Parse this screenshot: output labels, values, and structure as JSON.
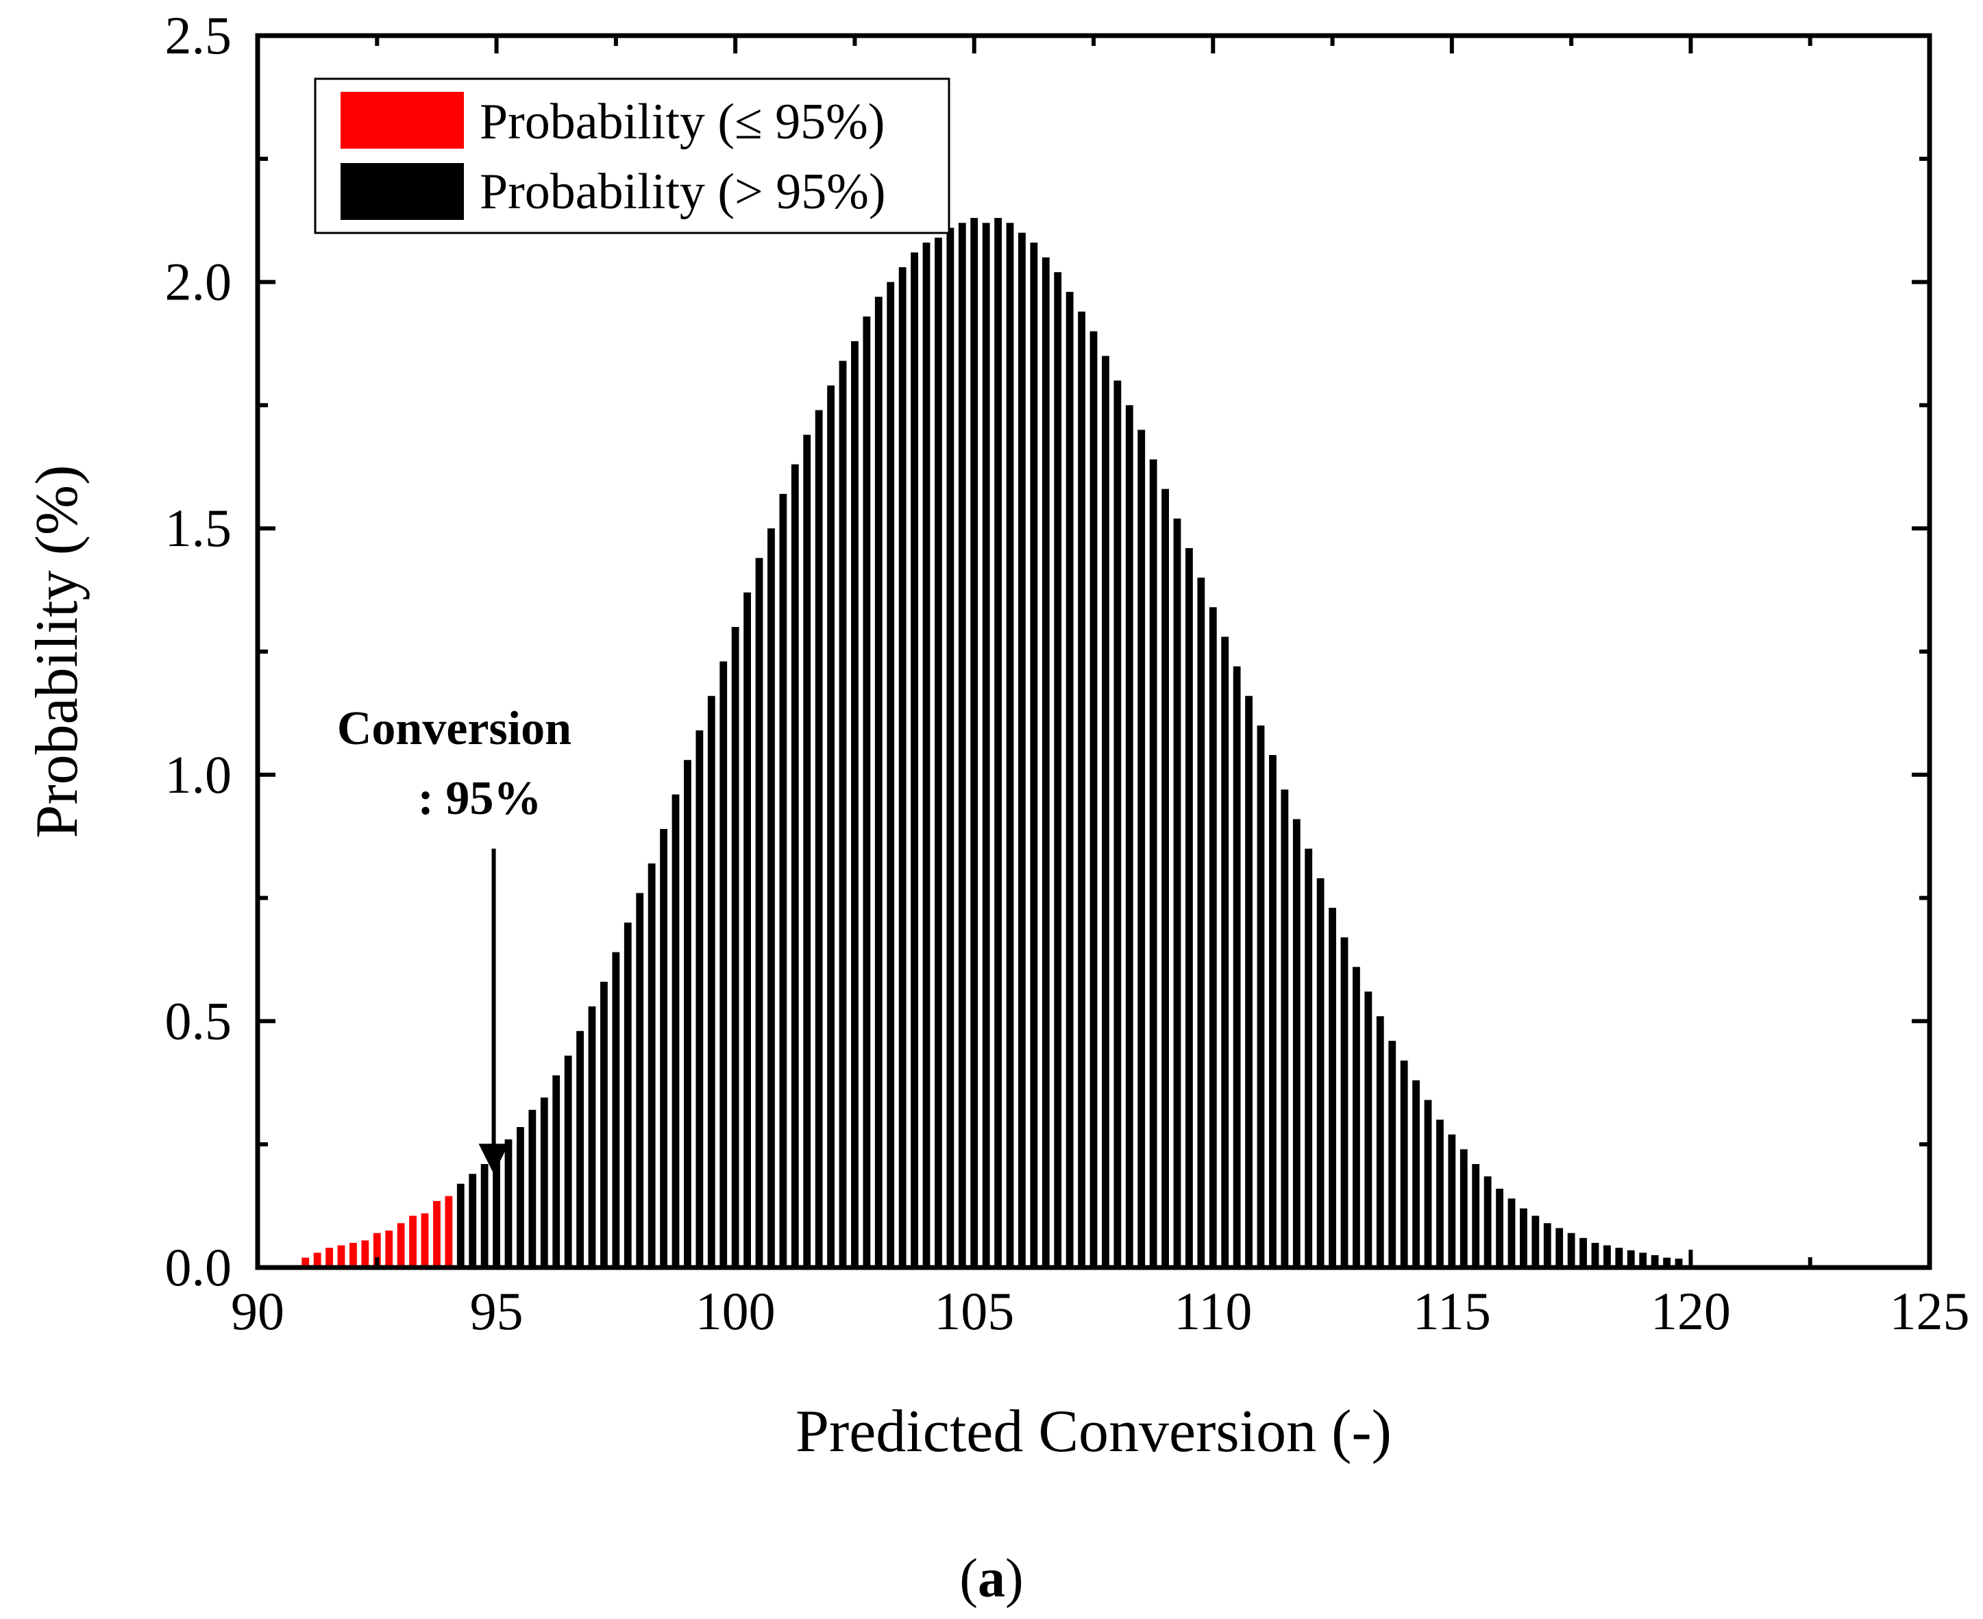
{
  "chart_data": {
    "type": "bar",
    "xlabel": "Predicted Conversion (-)",
    "ylabel": "Probability (%)",
    "xlim": [
      90,
      125
    ],
    "ylim": [
      0,
      2.5
    ],
    "xticks": [
      "90",
      "95",
      "100",
      "105",
      "110",
      "115",
      "120",
      "125"
    ],
    "yticks": [
      "0.0",
      "0.5",
      "1.0",
      "1.5",
      "2.0",
      "2.5"
    ],
    "grid": false,
    "legend_position": "top-left",
    "bin_start": 91.0,
    "bin_step": 0.25,
    "threshold": 95,
    "series": [
      {
        "name": "Probability (≤ 95%)",
        "color": "#ff0000",
        "values": [
          0.02,
          0.03,
          0.04,
          0.045,
          0.05,
          0.055,
          0.07,
          0.075,
          0.09,
          0.105,
          0.11,
          0.135,
          0.145
        ]
      },
      {
        "name": "Probability (> 95%)",
        "color": "#000000",
        "values": [
          0.17,
          0.19,
          0.21,
          0.23,
          0.26,
          0.285,
          0.32,
          0.345,
          0.39,
          0.43,
          0.48,
          0.53,
          0.58,
          0.64,
          0.7,
          0.76,
          0.82,
          0.89,
          0.96,
          1.03,
          1.09,
          1.16,
          1.23,
          1.3,
          1.37,
          1.44,
          1.5,
          1.57,
          1.63,
          1.69,
          1.74,
          1.79,
          1.84,
          1.88,
          1.93,
          1.97,
          2.0,
          2.03,
          2.06,
          2.08,
          2.09,
          2.11,
          2.12,
          2.13,
          2.12,
          2.13,
          2.12,
          2.1,
          2.08,
          2.05,
          2.02,
          1.98,
          1.94,
          1.9,
          1.85,
          1.8,
          1.75,
          1.7,
          1.64,
          1.58,
          1.52,
          1.46,
          1.4,
          1.34,
          1.28,
          1.22,
          1.16,
          1.1,
          1.04,
          0.97,
          0.91,
          0.85,
          0.79,
          0.73,
          0.67,
          0.61,
          0.56,
          0.51,
          0.46,
          0.42,
          0.38,
          0.34,
          0.3,
          0.27,
          0.24,
          0.21,
          0.185,
          0.16,
          0.14,
          0.12,
          0.105,
          0.09,
          0.08,
          0.07,
          0.06,
          0.05,
          0.045,
          0.04,
          0.035,
          0.03,
          0.025,
          0.02,
          0.018
        ]
      }
    ],
    "annotation": {
      "lines": [
        "Conversion",
        ": 95%"
      ],
      "x": 95,
      "arrow_from_y": 0.85,
      "arrow_to_y": 0.19
    }
  },
  "panel_label": {
    "open": "(",
    "letter": "a",
    "close": ")"
  }
}
